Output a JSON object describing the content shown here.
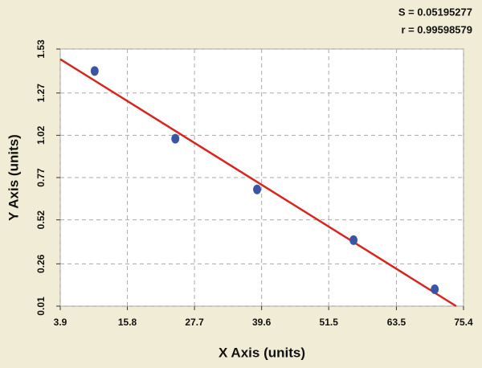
{
  "chart_data": {
    "type": "scatter",
    "annotations": [
      "S = 0.05195277",
      "r = 0.99598579"
    ],
    "xlabel": "X Axis (units)",
    "ylabel": "Y Axis (units)",
    "x": [
      10.0,
      24.3,
      38.8,
      55.9,
      70.3
    ],
    "values": [
      1.4,
      1.0,
      0.7,
      0.4,
      0.11
    ],
    "color": "#3a55a5",
    "fit_line": {
      "x": [
        3.9,
        74.1
      ],
      "y": [
        1.47,
        0.01
      ],
      "color": "#d7261e"
    },
    "xlim": [
      3.9,
      75.4
    ],
    "xticks": [
      3.9,
      15.8,
      27.7,
      39.6,
      51.5,
      63.5,
      75.4
    ],
    "ylim": [
      0.01,
      1.53
    ],
    "yticks": [
      0.01,
      0.26,
      0.52,
      0.77,
      1.02,
      1.27,
      1.53
    ],
    "grid": true
  }
}
